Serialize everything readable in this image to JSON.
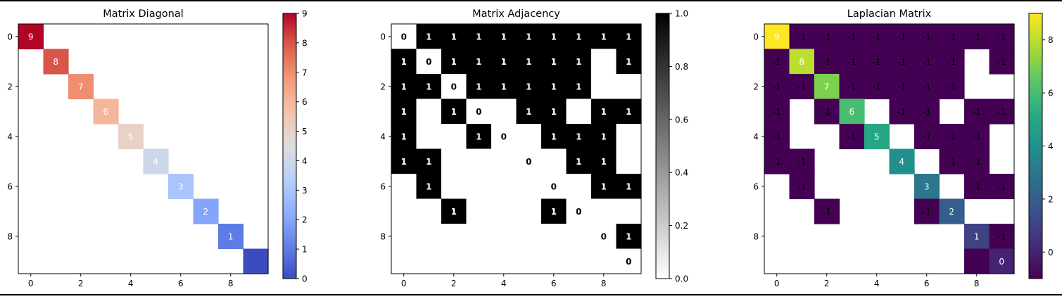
{
  "chart_data": [
    {
      "type": "heatmap",
      "title": "Matrix Diagonal",
      "colormap": "coolwarm",
      "vmin": 0,
      "vmax": 9,
      "nan_color": "#ffffff",
      "matrix": [
        [
          9,
          null,
          null,
          null,
          null,
          null,
          null,
          null,
          null,
          null
        ],
        [
          null,
          8,
          null,
          null,
          null,
          null,
          null,
          null,
          null,
          null
        ],
        [
          null,
          null,
          7,
          null,
          null,
          null,
          null,
          null,
          null,
          null
        ],
        [
          null,
          null,
          null,
          6,
          null,
          null,
          null,
          null,
          null,
          null
        ],
        [
          null,
          null,
          null,
          null,
          5,
          null,
          null,
          null,
          null,
          null
        ],
        [
          null,
          null,
          null,
          null,
          null,
          4,
          null,
          null,
          null,
          null
        ],
        [
          null,
          null,
          null,
          null,
          null,
          null,
          3,
          null,
          null,
          null
        ],
        [
          null,
          null,
          null,
          null,
          null,
          null,
          null,
          2,
          null,
          null
        ],
        [
          null,
          null,
          null,
          null,
          null,
          null,
          null,
          null,
          1,
          null
        ],
        [
          null,
          null,
          null,
          null,
          null,
          null,
          null,
          null,
          null,
          0
        ]
      ],
      "cell_labels": [
        [
          "9",
          "",
          "",
          "",
          "",
          "",
          "",
          "",
          "",
          ""
        ],
        [
          "",
          "8",
          "",
          "",
          "",
          "",
          "",
          "",
          "",
          ""
        ],
        [
          "",
          "",
          "7",
          "",
          "",
          "",
          "",
          "",
          "",
          ""
        ],
        [
          "",
          "",
          "",
          "6",
          "",
          "",
          "",
          "",
          "",
          ""
        ],
        [
          "",
          "",
          "",
          "",
          "5",
          "",
          "",
          "",
          "",
          ""
        ],
        [
          "",
          "",
          "",
          "",
          "",
          "4",
          "",
          "",
          "",
          ""
        ],
        [
          "",
          "",
          "",
          "",
          "",
          "",
          "3",
          "",
          "",
          ""
        ],
        [
          "",
          "",
          "",
          "",
          "",
          "",
          "",
          "2",
          "",
          ""
        ],
        [
          "",
          "",
          "",
          "",
          "",
          "",
          "",
          "",
          "1",
          ""
        ],
        [
          "",
          "",
          "",
          "",
          "",
          "",
          "",
          "",
          "",
          ""
        ]
      ],
      "label_color": "#ffffff",
      "label_weight": "normal",
      "xticks": [
        "0",
        "2",
        "4",
        "6",
        "8"
      ],
      "yticks": [
        "0",
        "2",
        "4",
        "6",
        "8"
      ],
      "colorbar_ticks": [
        "0",
        "1",
        "2",
        "3",
        "4",
        "5",
        "6",
        "7",
        "8",
        "9"
      ]
    },
    {
      "type": "heatmap",
      "title": "Matrix Adjacency",
      "colormap": "gray_r",
      "vmin": 0,
      "vmax": 1,
      "nan_color": "#ffffff",
      "matrix": [
        [
          0,
          1,
          1,
          1,
          1,
          1,
          1,
          1,
          1,
          1
        ],
        [
          1,
          0,
          1,
          1,
          1,
          1,
          1,
          1,
          0,
          1
        ],
        [
          1,
          1,
          0,
          1,
          1,
          1,
          1,
          1,
          0,
          0
        ],
        [
          1,
          0,
          1,
          0,
          0,
          1,
          1,
          0,
          1,
          1
        ],
        [
          1,
          0,
          0,
          1,
          0,
          0,
          1,
          1,
          1,
          0
        ],
        [
          1,
          1,
          0,
          0,
          0,
          0,
          0,
          1,
          1,
          0
        ],
        [
          0,
          1,
          0,
          0,
          0,
          0,
          0,
          0,
          1,
          1
        ],
        [
          0,
          0,
          1,
          0,
          0,
          0,
          1,
          0,
          0,
          0
        ],
        [
          0,
          0,
          0,
          0,
          0,
          0,
          0,
          0,
          0,
          1
        ],
        [
          0,
          0,
          0,
          0,
          0,
          0,
          0,
          0,
          0,
          0
        ]
      ],
      "cell_labels": [
        [
          "0",
          "1",
          "1",
          "1",
          "1",
          "1",
          "1",
          "1",
          "1",
          "1"
        ],
        [
          "1",
          "0",
          "1",
          "1",
          "1",
          "1",
          "1",
          "1",
          "",
          "1"
        ],
        [
          "1",
          "1",
          "0",
          "1",
          "1",
          "1",
          "1",
          "1",
          "",
          ""
        ],
        [
          "1",
          "",
          "1",
          "0",
          "",
          "1",
          "1",
          "",
          "1",
          "1"
        ],
        [
          "1",
          "",
          "",
          "1",
          "0",
          "",
          "1",
          "1",
          "1",
          ""
        ],
        [
          "1",
          "1",
          "",
          "",
          "",
          "0",
          "",
          "1",
          "1",
          ""
        ],
        [
          "",
          "1",
          "",
          "",
          "",
          "",
          "0",
          "",
          "1",
          "1"
        ],
        [
          "",
          "",
          "1",
          "",
          "",
          "",
          "1",
          "0",
          "",
          ""
        ],
        [
          "",
          "",
          "",
          "",
          "",
          "",
          "",
          "",
          "0",
          "1"
        ],
        [
          "",
          "",
          "",
          "",
          "",
          "",
          "",
          "",
          "",
          "0"
        ]
      ],
      "label_color": "auto",
      "label_weight": "bold",
      "xticks": [
        "0",
        "2",
        "4",
        "6",
        "8"
      ],
      "yticks": [
        "0",
        "2",
        "4",
        "6",
        "8"
      ],
      "colorbar_ticks": [
        "0.0",
        "0.2",
        "0.4",
        "0.6",
        "0.8",
        "1.0"
      ]
    },
    {
      "type": "heatmap",
      "title": "Laplacian Matrix",
      "colormap": "viridis",
      "vmin": -1,
      "vmax": 9,
      "nan_color": "#ffffff",
      "matrix": [
        [
          9,
          -1,
          -1,
          -1,
          -1,
          -1,
          -1,
          -1,
          -1,
          -1
        ],
        [
          -1,
          8,
          -1,
          -1,
          -1,
          -1,
          -1,
          -1,
          null,
          -1
        ],
        [
          -1,
          -1,
          7,
          -1,
          -1,
          -1,
          -1,
          -1,
          null,
          null
        ],
        [
          -1,
          null,
          -1,
          6,
          null,
          -1,
          -1,
          null,
          -1,
          -1
        ],
        [
          -1,
          null,
          null,
          -1,
          5,
          null,
          -1,
          -1,
          -1,
          null
        ],
        [
          -1,
          -1,
          null,
          null,
          null,
          4,
          null,
          -1,
          -1,
          null
        ],
        [
          null,
          -1,
          null,
          null,
          null,
          null,
          3,
          null,
          -1,
          -1
        ],
        [
          null,
          null,
          -1,
          null,
          null,
          null,
          -1,
          2,
          null,
          null
        ],
        [
          null,
          null,
          null,
          null,
          null,
          null,
          null,
          null,
          1,
          -1
        ],
        [
          null,
          null,
          null,
          null,
          null,
          null,
          null,
          null,
          -1,
          0
        ]
      ],
      "cell_labels": [
        [
          "9",
          "-1",
          "-1",
          "-1",
          "-1",
          "-1",
          "-1",
          "-1",
          "-1",
          "-1"
        ],
        [
          "-1",
          "8",
          "-1",
          "-1",
          "-1",
          "-1",
          "-1",
          "-1",
          "",
          "-1"
        ],
        [
          "-1",
          "-1",
          "7",
          "-1",
          "-1",
          "-1",
          "-1",
          "-1",
          "",
          ""
        ],
        [
          "-1",
          "",
          "-1",
          "6",
          "",
          "-1",
          "-1",
          "",
          "-1",
          "-1"
        ],
        [
          "-1",
          "",
          "",
          "-1",
          "5",
          "",
          "-1",
          "-1",
          "-1",
          ""
        ],
        [
          "-1",
          "-1",
          "",
          "",
          "",
          "4",
          "",
          "-1",
          "-1",
          ""
        ],
        [
          "",
          "-1",
          "",
          "",
          "",
          "",
          "3",
          "",
          "-1",
          "-1"
        ],
        [
          "",
          "",
          "-1",
          "",
          "",
          "",
          "-1",
          "2",
          "",
          ""
        ],
        [
          "",
          "",
          "",
          "",
          "",
          "",
          "",
          "",
          "1",
          "-1"
        ],
        [
          "",
          "",
          "",
          "",
          "",
          "",
          "",
          "",
          "",
          "0"
        ]
      ],
      "label_color": "laplacian",
      "label_weight": "normal",
      "xticks": [
        "0",
        "2",
        "4",
        "6",
        "8"
      ],
      "yticks": [
        "0",
        "2",
        "4",
        "6",
        "8"
      ],
      "colorbar_ticks": [
        "0",
        "2",
        "4",
        "6",
        "8"
      ]
    }
  ]
}
